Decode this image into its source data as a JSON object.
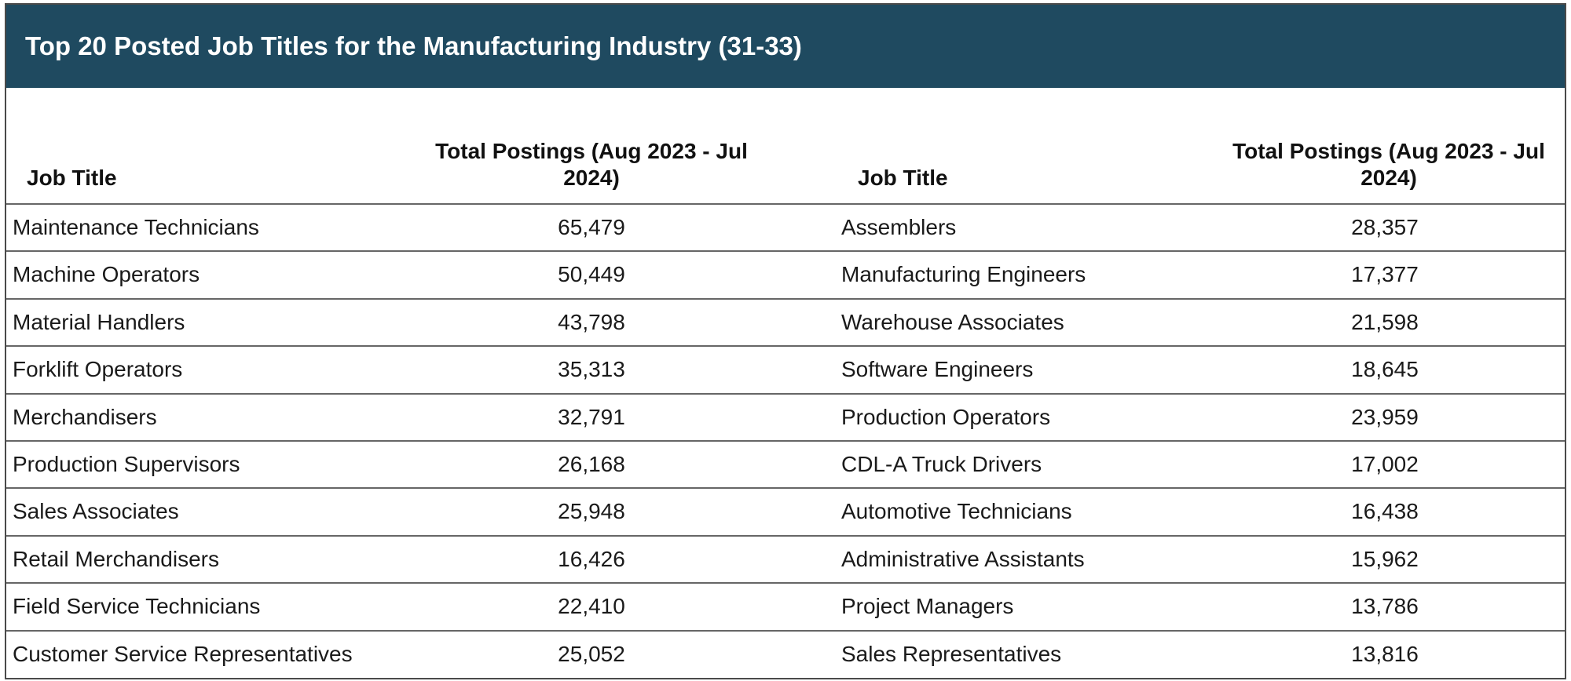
{
  "header": {
    "title": "Top 20 Posted Job Titles for the Manufacturing Industry (31-33)"
  },
  "table": {
    "columns": [
      "Job Title",
      "Total Postings (Aug 2023 - Jul 2024)",
      "Job Title",
      "Total Postings (Aug 2023 - Jul 2024)"
    ],
    "rows": [
      [
        "Maintenance Technicians",
        "65,479",
        "Assemblers",
        "28,357"
      ],
      [
        "Machine Operators",
        "50,449",
        "Manufacturing Engineers",
        "17,377"
      ],
      [
        "Material Handlers",
        "43,798",
        "Warehouse Associates",
        "21,598"
      ],
      [
        "Forklift Operators",
        "35,313",
        "Software Engineers",
        "18,645"
      ],
      [
        "Merchandisers",
        "32,791",
        "Production Operators",
        "23,959"
      ],
      [
        "Production Supervisors",
        "26,168",
        "CDL-A Truck Drivers",
        "17,002"
      ],
      [
        "Sales Associates",
        "25,948",
        "Automotive Technicians",
        "16,438"
      ],
      [
        "Retail Merchandisers",
        "16,426",
        "Administrative Assistants",
        "15,962"
      ],
      [
        "Field Service Technicians",
        "22,410",
        "Project Managers",
        "13,786"
      ],
      [
        "Customer Service Representatives",
        "25,052",
        "Sales Representatives",
        "13,816"
      ]
    ]
  }
}
